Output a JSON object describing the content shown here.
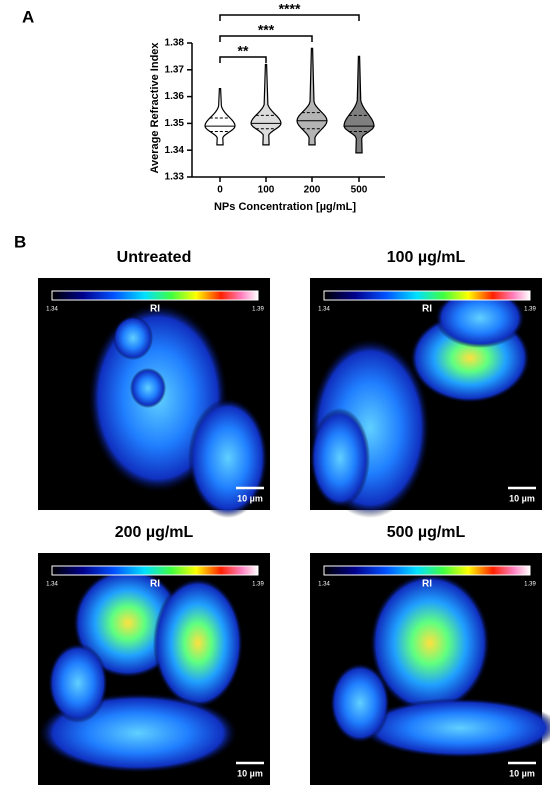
{
  "chart_data": {
    "type": "violin",
    "panel_label": "A",
    "y_label": "Average Refractive Index",
    "x_label": "NPs Concentration [µg/mL]",
    "categories": [
      "0",
      "100",
      "200",
      "500"
    ],
    "min": [
      1.342,
      1.342,
      1.342,
      1.339
    ],
    "q1": [
      1.347,
      1.348,
      1.348,
      1.347
    ],
    "median": [
      1.349,
      1.35,
      1.351,
      1.349
    ],
    "q3": [
      1.352,
      1.353,
      1.354,
      1.353
    ],
    "max": [
      1.363,
      1.372,
      1.378,
      1.375
    ],
    "colors": [
      "#ffffff",
      "#dcdcdc",
      "#b4b4b4",
      "#7f7f7f"
    ],
    "ylim": [
      1.33,
      1.38
    ],
    "yticks": [
      1.33,
      1.34,
      1.35,
      1.36,
      1.37,
      1.38
    ],
    "comparisons": [
      {
        "groups": [
          "0",
          "100"
        ],
        "label": "**"
      },
      {
        "groups": [
          "0",
          "200"
        ],
        "label": "***"
      },
      {
        "groups": [
          "0",
          "500"
        ],
        "label": "****"
      }
    ]
  },
  "images": {
    "panel_label": "B",
    "panels": [
      {
        "title": "Untreated",
        "colorbar": {
          "min": "1.34",
          "label": "RI",
          "max": "1.39"
        },
        "scale_bar": "10 µm"
      },
      {
        "title": "100 µg/mL",
        "colorbar": {
          "min": "1.34",
          "label": "RI",
          "max": "1.39"
        },
        "scale_bar": "10 µm"
      },
      {
        "title": "200 µg/mL",
        "colorbar": {
          "min": "1.34",
          "label": "RI",
          "max": "1.39"
        },
        "scale_bar": "10 µm"
      },
      {
        "title": "500 µg/mL",
        "colorbar": {
          "min": "1.34",
          "label": "RI",
          "max": "1.39"
        },
        "scale_bar": "10 µm"
      }
    ]
  }
}
